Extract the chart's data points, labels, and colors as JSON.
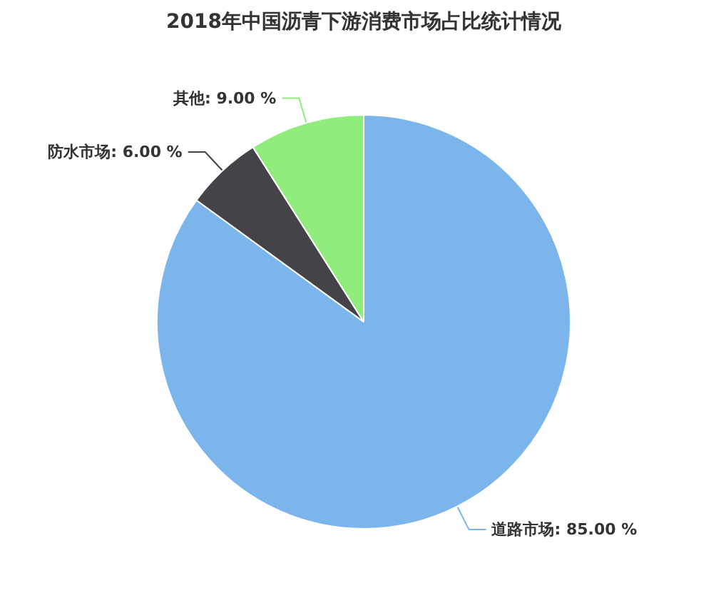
{
  "chart_data": {
    "type": "pie",
    "title": "2018年中国沥青下游消费市场占比统计情况",
    "categories": [
      "道路市场",
      "防水市场",
      "其他"
    ],
    "values": [
      85,
      6,
      9
    ],
    "value_labels": [
      "85.00 %",
      "6.00 %",
      "9.00 %"
    ],
    "colors": [
      "#7cb5ec",
      "#434348",
      "#90ed7d"
    ]
  }
}
